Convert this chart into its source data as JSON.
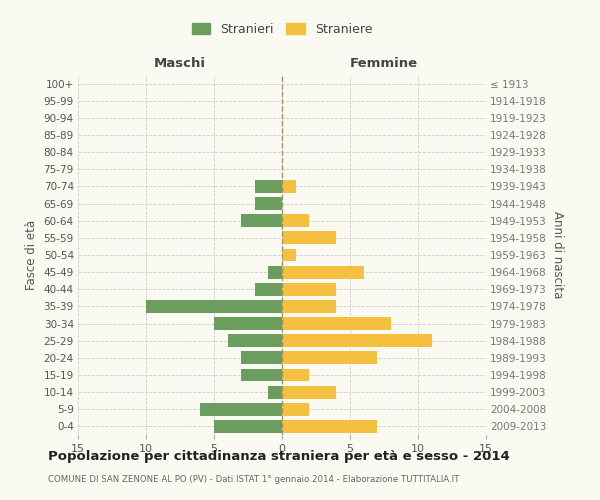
{
  "age_groups": [
    "0-4",
    "5-9",
    "10-14",
    "15-19",
    "20-24",
    "25-29",
    "30-34",
    "35-39",
    "40-44",
    "45-49",
    "50-54",
    "55-59",
    "60-64",
    "65-69",
    "70-74",
    "75-79",
    "80-84",
    "85-89",
    "90-94",
    "95-99",
    "100+"
  ],
  "birth_years": [
    "2009-2013",
    "2004-2008",
    "1999-2003",
    "1994-1998",
    "1989-1993",
    "1984-1988",
    "1979-1983",
    "1974-1978",
    "1969-1973",
    "1964-1968",
    "1959-1963",
    "1954-1958",
    "1949-1953",
    "1944-1948",
    "1939-1943",
    "1934-1938",
    "1929-1933",
    "1924-1928",
    "1919-1923",
    "1914-1918",
    "≤ 1913"
  ],
  "males": [
    5,
    6,
    1,
    3,
    3,
    4,
    5,
    10,
    2,
    1,
    0,
    0,
    3,
    2,
    2,
    0,
    0,
    0,
    0,
    0,
    0
  ],
  "females": [
    7,
    2,
    4,
    2,
    7,
    11,
    8,
    4,
    4,
    6,
    1,
    4,
    2,
    0,
    1,
    0,
    0,
    0,
    0,
    0,
    0
  ],
  "male_color": "#6b9e5e",
  "female_color": "#f5c040",
  "grid_color": "#cccccc",
  "center_line_color": "#999966",
  "title": "Popolazione per cittadinanza straniera per età e sesso - 2014",
  "subtitle": "COMUNE DI SAN ZENONE AL PO (PV) - Dati ISTAT 1° gennaio 2014 - Elaborazione TUTTITALIA.IT",
  "xlabel_left": "Maschi",
  "xlabel_right": "Femmine",
  "ylabel_left": "Fasce di età",
  "ylabel_right": "Anni di nascita",
  "legend_male": "Stranieri",
  "legend_female": "Straniere",
  "xlim": 15,
  "background_color": "#fafaf2"
}
